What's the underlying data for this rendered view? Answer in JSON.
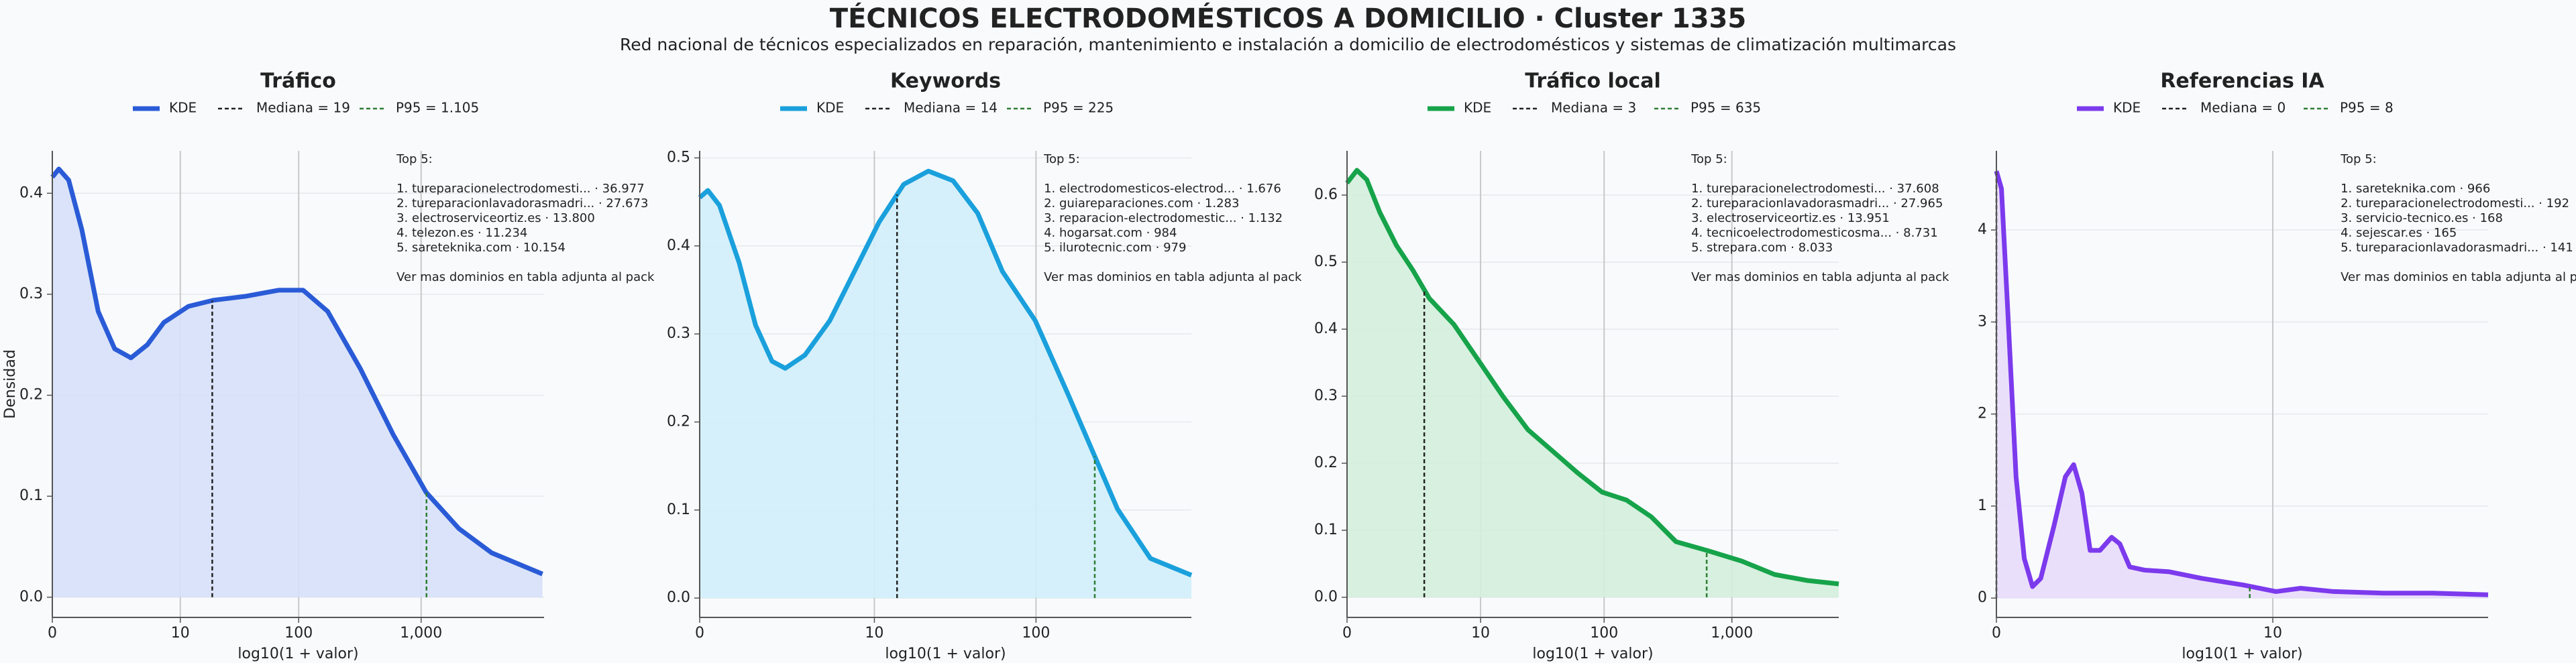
{
  "title": "TÉCNICOS ELECTRODOMÉSTICOS A DOMICILIO · Cluster 1335",
  "subtitle": "Red nacional de técnicos especializados en reparación, mantenimiento e instalación a domicilio de electrodomésticos y sistemas de climatización multimarcas",
  "chart_data": [
    {
      "type": "kde",
      "title": "Tráfico",
      "xlabel": "log10(1 + valor)",
      "ylabel": "Densidad",
      "xlim": [
        0,
        4
      ],
      "xticks": [
        0,
        {
          "value": 1.041,
          "label": "10"
        },
        {
          "value": 2.004,
          "label": "100"
        },
        {
          "value": 3.0,
          "label": "1,000"
        }
      ],
      "ylim": [
        -0.02,
        0.442
      ],
      "yticks": [
        {
          "value": 0,
          "label": "0.0"
        },
        0.1,
        0.2,
        0.3,
        0.4
      ],
      "grid": true,
      "x": [
        0,
        0.053,
        0.133,
        0.24,
        0.373,
        0.507,
        0.64,
        0.773,
        0.907,
        1.107,
        1.307,
        1.573,
        1.84,
        2.04,
        2.24,
        2.507,
        2.773,
        3.04,
        3.307,
        3.573,
        3.987
      ],
      "series": [
        {
          "name": "KDE",
          "color": "#2a5bd7",
          "fill": "#d6e0f8",
          "values": [
            0.416,
            0.424,
            0.413,
            0.364,
            0.283,
            0.246,
            0.237,
            0.25,
            0.272,
            0.288,
            0.294,
            0.298,
            0.304,
            0.304,
            0.283,
            0.226,
            0.161,
            0.104,
            0.068,
            0.044,
            0.023
          ]
        }
      ],
      "reference_lines": [
        {
          "name": "Mediana = 19",
          "value": 19,
          "color": "#222222"
        },
        {
          "name": "P95 = 1.105",
          "value": 1105,
          "color": "#2e7d32"
        }
      ],
      "annotation": {
        "title": "Top 5:",
        "lines": [
          "1. tureparacionelectrodomesti... · 36.977",
          "2. tureparacionlavadorasmadri... · 27.673",
          "3. electroserviceortiz.es · 13.800",
          "4. telezon.es · 11.234",
          "5. sareteknika.com · 10.154"
        ],
        "footer": "Ver mas dominios en tabla adjunta al pack"
      }
    },
    {
      "type": "kde",
      "title": "Keywords",
      "xlabel": "log10(1 + valor)",
      "xlim": [
        0,
        2.93
      ],
      "xticks": [
        0,
        {
          "value": 1.041,
          "label": "10"
        },
        {
          "value": 2.004,
          "label": "100"
        }
      ],
      "ylim": [
        -0.022,
        0.508
      ],
      "yticks": [
        {
          "value": 0,
          "label": "0.0"
        },
        0.1,
        0.2,
        0.3,
        0.4,
        0.5
      ],
      "grid": true,
      "x": [
        0,
        0.049,
        0.118,
        0.235,
        0.333,
        0.431,
        0.51,
        0.627,
        0.775,
        0.922,
        1.069,
        1.216,
        1.363,
        1.51,
        1.657,
        1.804,
        2.0,
        2.196,
        2.343,
        2.49,
        2.686,
        2.93
      ],
      "series": [
        {
          "name": "KDE",
          "color": "#1aa0dc",
          "fill": "#d0eef9",
          "values": [
            0.455,
            0.463,
            0.446,
            0.381,
            0.31,
            0.269,
            0.261,
            0.276,
            0.315,
            0.371,
            0.427,
            0.47,
            0.485,
            0.474,
            0.437,
            0.371,
            0.315,
            0.231,
            0.166,
            0.101,
            0.045,
            0.026
          ]
        }
      ],
      "reference_lines": [
        {
          "name": "Mediana = 14",
          "value": 14,
          "color": "#222222"
        },
        {
          "name": "P95 = 225",
          "value": 225,
          "color": "#2e7d32"
        }
      ],
      "annotation": {
        "title": "Top 5:",
        "lines": [
          "1. electrodomesticos-electrod... · 1.676",
          "2. guiareparaciones.com · 1.283",
          "3. reparacion-electrodomestic... · 1.132",
          "4. hogarsat.com · 984",
          "5. ilurotecnic.com · 979"
        ],
        "footer": "Ver mas dominios en tabla adjunta al pack"
      }
    },
    {
      "type": "kde",
      "title": "Tráfico local",
      "xlabel": "log10(1 + valor)",
      "xlim": [
        0,
        3.833
      ],
      "xticks": [
        0,
        {
          "value": 1.041,
          "label": "10"
        },
        {
          "value": 2.004,
          "label": "100"
        },
        {
          "value": 3.0,
          "label": "1,000"
        }
      ],
      "ylim": [
        -0.03,
        0.666
      ],
      "yticks": [
        {
          "value": 0,
          "label": "0.0"
        },
        0.1,
        0.2,
        0.3,
        0.4,
        0.5,
        0.6
      ],
      "grid": true,
      "x": [
        0,
        0.077,
        0.154,
        0.256,
        0.385,
        0.513,
        0.641,
        0.833,
        1.026,
        1.218,
        1.41,
        1.603,
        1.795,
        1.987,
        2.179,
        2.372,
        2.564,
        2.821,
        3.077,
        3.333,
        3.59,
        3.833
      ],
      "series": [
        {
          "name": "KDE",
          "color": "#16a34a",
          "fill": "#d3eedb",
          "values": [
            0.618,
            0.637,
            0.623,
            0.574,
            0.525,
            0.488,
            0.446,
            0.407,
            0.353,
            0.299,
            0.25,
            0.218,
            0.186,
            0.157,
            0.145,
            0.12,
            0.083,
            0.069,
            0.054,
            0.034,
            0.025,
            0.02
          ]
        }
      ],
      "reference_lines": [
        {
          "name": "Mediana = 3",
          "value": 3,
          "color": "#222222"
        },
        {
          "name": "P95 = 635",
          "value": 635,
          "color": "#2e7d32"
        }
      ],
      "annotation": {
        "title": "Top 5:",
        "lines": [
          "1. tureparacionelectrodomesti... · 37.608",
          "2. tureparacionlavadorasmadri... · 27.965",
          "3. electroserviceortiz.es · 13.951",
          "4. tecnicoelectrodomesticosma... · 8.731",
          "5. strepara.com · 8.033"
        ],
        "footer": "Ver mas dominios en tabla adjunta al pack"
      }
    },
    {
      "type": "kde",
      "title": "Referencias IA",
      "xlabel": "log10(1 + valor)",
      "xlim": [
        0,
        1.852
      ],
      "xticks": [
        0,
        {
          "value": 1.041,
          "label": "10"
        }
      ],
      "ylim": [
        -0.21,
        4.86
      ],
      "yticks": [
        0,
        1,
        2,
        3,
        4
      ],
      "grid": true,
      "x": [
        0,
        0.019,
        0.043,
        0.074,
        0.105,
        0.136,
        0.167,
        0.217,
        0.26,
        0.291,
        0.322,
        0.353,
        0.39,
        0.434,
        0.465,
        0.502,
        0.558,
        0.651,
        0.774,
        0.929,
        1.053,
        1.146,
        1.27,
        1.456,
        1.642,
        1.852
      ],
      "series": [
        {
          "name": "KDE",
          "color": "#7c3aed",
          "fill": "#e8dcf9",
          "values": [
            4.64,
            4.45,
            3.11,
            1.32,
            0.43,
            0.125,
            0.214,
            0.786,
            1.32,
            1.45,
            1.14,
            0.518,
            0.518,
            0.661,
            0.589,
            0.339,
            0.304,
            0.286,
            0.214,
            0.143,
            0.071,
            0.107,
            0.071,
            0.054,
            0.054,
            0.036
          ]
        }
      ],
      "reference_lines": [
        {
          "name": "Mediana = 0",
          "value": 0,
          "color": "#222222"
        },
        {
          "name": "P95 = 8",
          "value": 8,
          "color": "#2e7d32"
        }
      ],
      "annotation": {
        "title": "Top 5:",
        "lines": [
          "1. sareteknika.com · 966",
          "2. tureparacionelectrodomesti... · 192",
          "3. servicio-tecnico.es · 168",
          "4. sejescar.es · 165",
          "5. tureparacionlavadorasmadri... · 141"
        ],
        "footer": "Ver mas dominios en tabla adjunta al pack"
      }
    }
  ]
}
